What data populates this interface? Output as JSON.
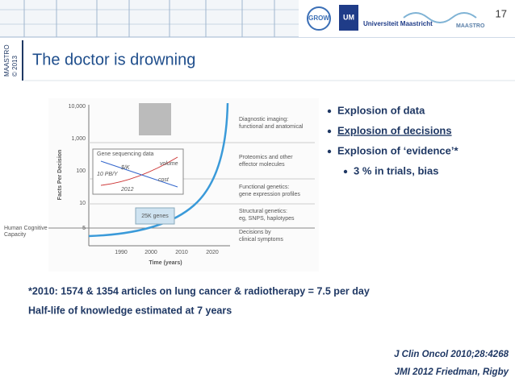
{
  "header": {
    "slide_number": "17",
    "logos": [
      "GROW",
      "UM",
      "Universiteit Maastricht",
      "MAASTRO"
    ],
    "side_label": [
      "MAASTRO",
      "© 2013"
    ]
  },
  "title": "The doctor is drowning",
  "figure": {
    "y_label": "Facts Per Decision",
    "y_ticks": [
      "10,000",
      "1,000",
      "100",
      "10",
      "5"
    ],
    "x_label": "Time (years)",
    "x_ticks": [
      "1990",
      "2000",
      "2010",
      "2020"
    ],
    "layers": [
      [
        "Diagnostic imaging:",
        "functional and anatomical"
      ],
      [
        "Proteomics and other",
        "effector molecules"
      ],
      [
        "Functional genetics:",
        "gene expression profiles"
      ],
      [
        "Structural genetics:",
        "eg, SNPS, haplotypes"
      ],
      [
        "Decisions by",
        "clinical symptoms"
      ]
    ],
    "capacity_label": [
      "Human Cognitive",
      "Capacity"
    ],
    "inset": {
      "title": "Gene sequencing data",
      "labels": [
        "$/K",
        "10 PB/Y",
        "volume",
        "cost",
        "2012"
      ]
    },
    "genes_label": "25K genes"
  },
  "bullets": [
    {
      "text": "Explosion of data",
      "level": 1
    },
    {
      "text": "Explosion of decisions",
      "level": 1,
      "highlight": true
    },
    {
      "text": "Explosion of ‘evidence’*",
      "level": 1
    },
    {
      "text": "3 % in trials, bias",
      "level": 2
    }
  ],
  "notes": [
    "*2010: 1574 & 1354 articles on lung cancer & radiotherapy = 7.5 per day",
    "Half-life of knowledge estimated at 7 years"
  ],
  "references": [
    "J Clin Oncol 2010;28:4268",
    "JMI 2012 Friedman, Rigby"
  ]
}
